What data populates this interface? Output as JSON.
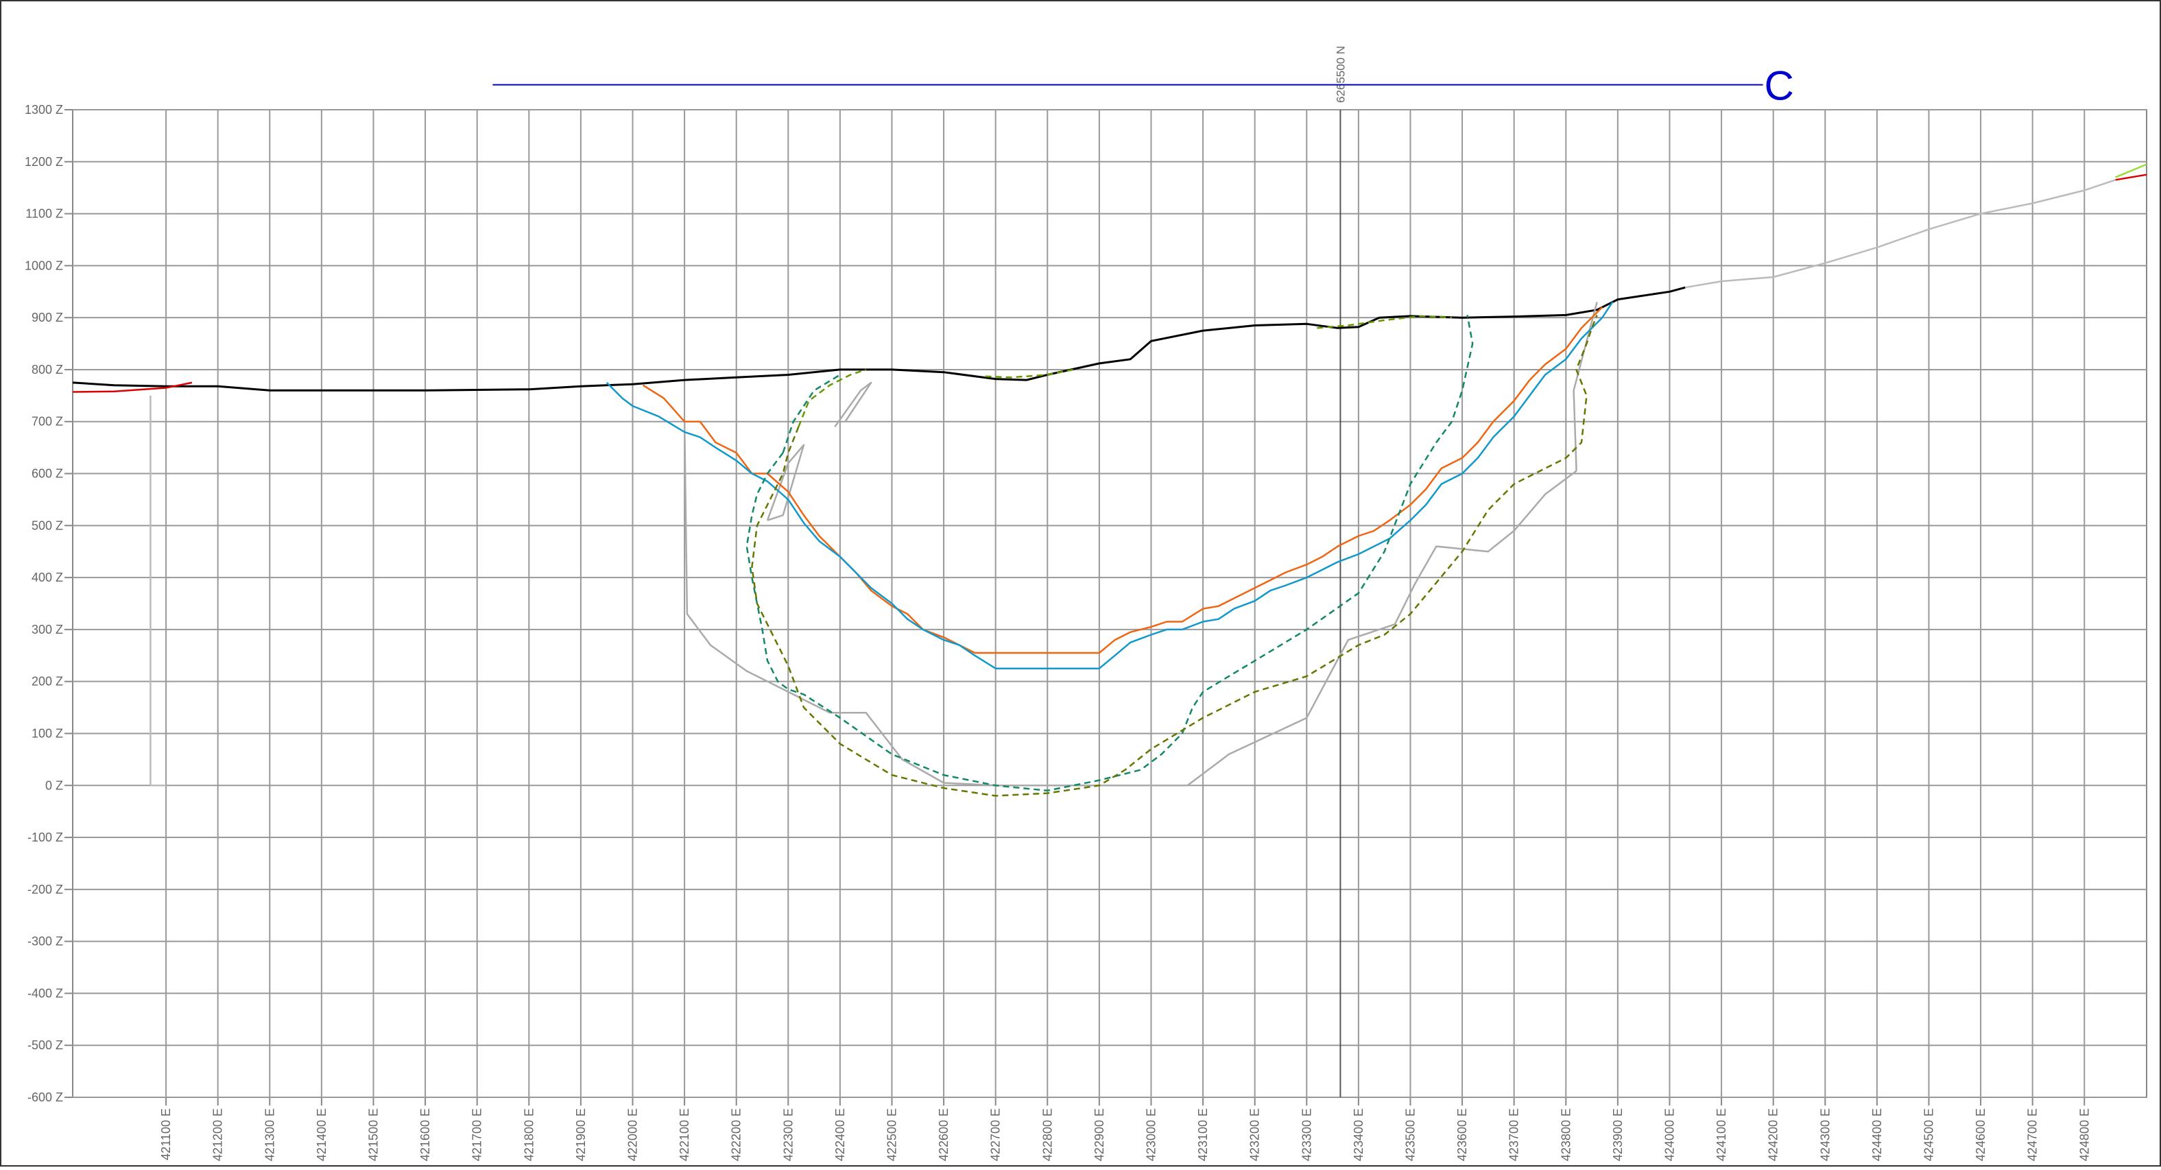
{
  "chart_data": {
    "type": "line",
    "title": "",
    "xlabel": "",
    "ylabel": "",
    "xlim": [
      420920,
      424920
    ],
    "ylim": [
      -600,
      1300
    ],
    "x_ticks": [
      421100,
      421200,
      421300,
      421400,
      421500,
      421600,
      421700,
      421800,
      421900,
      422000,
      422100,
      422200,
      422300,
      422400,
      422500,
      422600,
      422700,
      422800,
      422900,
      423000,
      423100,
      423200,
      423300,
      423400,
      423500,
      423600,
      423700,
      423800,
      423900,
      424000,
      424100,
      424200,
      424300,
      424400,
      424500,
      424600,
      424700,
      424800
    ],
    "x_tick_labels": [
      "421100 E",
      "421200 E",
      "421300 E",
      "421400 E",
      "421500 E",
      "421600 E",
      "421700 E",
      "421800 E",
      "421900 E",
      "422000 E",
      "422100 E",
      "422200 E",
      "422300 E",
      "422400 E",
      "422500 E",
      "422600 E",
      "422700 E",
      "422800 E",
      "422900 E",
      "423000 E",
      "423100 E",
      "423200 E",
      "423300 E",
      "423400 E",
      "423500 E",
      "423600 E",
      "423700 E",
      "423800 E",
      "423900 E",
      "424000 E",
      "424100 E",
      "424200 E",
      "424300 E",
      "424400 E",
      "424500 E",
      "424600 E",
      "424700 E",
      "424800 E"
    ],
    "y_ticks": [
      1300,
      1200,
      1100,
      1000,
      900,
      800,
      700,
      600,
      500,
      400,
      300,
      200,
      100,
      0,
      -100,
      -200,
      -300,
      -400,
      -500,
      -600
    ],
    "y_tick_labels": [
      "1300 Z",
      "1200 Z",
      "1100 Z",
      "1000 Z",
      "900 Z",
      "800 Z",
      "700 Z",
      "600 Z",
      "500 Z",
      "400 Z",
      "300 Z",
      "200 Z",
      "100 Z",
      "0 Z",
      "-100 Z",
      "-200 Z",
      "-300 Z",
      "-400 Z",
      "-500 Z",
      "-600 Z"
    ],
    "grid": true,
    "northing_line": {
      "x": 423365,
      "label": "6265500 N"
    },
    "section": {
      "label": "C",
      "x_start": 421730,
      "x_end": 424180,
      "y": 1348,
      "color": "#0000cc"
    },
    "series": [
      {
        "color": "#000000",
        "style": "solid",
        "x": [
          420920,
          421000,
          421100,
          421200,
          421300,
          421400,
          421600,
          421800,
          421900,
          422000,
          422100,
          422200,
          422300,
          422400,
          422500,
          422600,
          422700,
          422760,
          422800,
          422900,
          422960,
          423000,
          423100,
          423200,
          423300,
          423360,
          423400,
          423440,
          423500,
          423600,
          423700,
          423800,
          423860,
          423900,
          424000,
          424030
        ],
        "y": [
          775,
          770,
          768,
          768,
          760,
          760,
          760,
          762,
          768,
          772,
          780,
          785,
          790,
          800,
          800,
          795,
          782,
          780,
          790,
          812,
          820,
          855,
          875,
          885,
          888,
          880,
          882,
          900,
          903,
          900,
          902,
          905,
          915,
          935,
          950,
          958
        ]
      },
      {
        "color": "#dd0000",
        "style": "solid",
        "x": [
          420920,
          421000,
          421100,
          421150
        ],
        "y": [
          757,
          758,
          765,
          775
        ]
      },
      {
        "color": "#dd0000",
        "style": "solid",
        "x": [
          424860,
          424920
        ],
        "y": [
          1165,
          1175
        ]
      },
      {
        "color": "#99dd33",
        "style": "solid",
        "x": [
          424860,
          424920
        ],
        "y": [
          1170,
          1195
        ]
      },
      {
        "color": "#bbbbbb",
        "style": "solid",
        "x": [
          424030,
          424100,
          424200,
          424300,
          424400,
          424500,
          424600,
          424700,
          424800,
          424860
        ],
        "y": [
          958,
          970,
          978,
          1005,
          1035,
          1070,
          1100,
          1120,
          1145,
          1165
        ]
      },
      {
        "color": "#bbbbbb",
        "style": "solid",
        "x": [
          421070,
          421070,
          421100
        ],
        "y": [
          750,
          0,
          0
        ]
      },
      {
        "color": "#aaaaaa",
        "style": "solid",
        "x": [
          422100,
          422105,
          422150,
          422220,
          422300,
          422380,
          422450,
          422520,
          422600,
          422700,
          422800,
          422900,
          423000,
          423070
        ],
        "y": [
          700,
          330,
          270,
          220,
          180,
          140,
          140,
          50,
          5,
          0,
          0,
          0,
          0,
          0
        ]
      },
      {
        "color": "#aaaaaa",
        "style": "solid",
        "x": [
          423070,
          423150,
          423300,
          423380,
          423470,
          423510,
          423550,
          423650,
          423700,
          423760,
          423820,
          423820,
          423815,
          423860
        ],
        "y": [
          0,
          60,
          130,
          280,
          310,
          390,
          460,
          450,
          490,
          560,
          605,
          615,
          760,
          930
        ]
      },
      {
        "color": "#aaaaaa",
        "style": "solid",
        "x": [
          422260,
          422300,
          422330,
          422290,
          422260
        ],
        "y": [
          510,
          620,
          655,
          520,
          510
        ]
      },
      {
        "color": "#aaaaaa",
        "style": "solid",
        "x": [
          422390,
          422440,
          422460,
          422410
        ],
        "y": [
          690,
          760,
          775,
          700
        ]
      },
      {
        "color": "#ee6611",
        "style": "solid",
        "x": [
          422020,
          422060,
          422100,
          422130,
          422160,
          422200,
          422230,
          422260,
          422300,
          422330,
          422360,
          422400,
          422430,
          422460,
          422500,
          422530,
          422560,
          422600,
          422630,
          422660,
          422700,
          422900,
          422930,
          422960,
          423000,
          423030,
          423060,
          423100,
          423130,
          423160,
          423200,
          423230,
          423260,
          423300,
          423330,
          423360,
          423400,
          423430,
          423460,
          423500,
          423530,
          423560,
          423600,
          423630,
          423660,
          423700,
          423730,
          423760,
          423800,
          423830,
          423870
        ],
        "y": [
          770,
          745,
          700,
          700,
          660,
          640,
          600,
          600,
          565,
          520,
          480,
          440,
          410,
          375,
          345,
          330,
          300,
          285,
          270,
          255,
          255,
          255,
          280,
          295,
          305,
          315,
          315,
          340,
          345,
          360,
          380,
          395,
          410,
          425,
          440,
          460,
          480,
          490,
          510,
          540,
          570,
          610,
          630,
          660,
          700,
          740,
          780,
          810,
          840,
          880,
          920
        ]
      },
      {
        "color": "#1199cc",
        "style": "solid",
        "x": [
          421950,
          421980,
          422000,
          422050,
          422100,
          422130,
          422160,
          422200,
          422230,
          422260,
          422300,
          422330,
          422360,
          422400,
          422430,
          422460,
          422500,
          422530,
          422560,
          422600,
          422630,
          422660,
          422700,
          422900,
          422930,
          422960,
          423000,
          423030,
          423060,
          423100,
          423130,
          423160,
          423200,
          423230,
          423260,
          423300,
          423330,
          423360,
          423400,
          423430,
          423460,
          423500,
          423530,
          423560,
          423600,
          423630,
          423660,
          423700,
          423730,
          423760,
          423800,
          423830,
          423870,
          423890
        ],
        "y": [
          775,
          745,
          730,
          710,
          680,
          670,
          650,
          625,
          600,
          585,
          550,
          505,
          470,
          440,
          410,
          380,
          350,
          320,
          300,
          280,
          270,
          250,
          225,
          225,
          250,
          275,
          290,
          300,
          300,
          315,
          320,
          340,
          355,
          375,
          385,
          400,
          415,
          430,
          445,
          460,
          475,
          510,
          540,
          580,
          600,
          630,
          670,
          710,
          750,
          790,
          820,
          860,
          900,
          930
        ]
      },
      {
        "color": "#118866",
        "style": "dashed",
        "x": [
          422290,
          422260,
          422240,
          422230,
          422220,
          422230,
          422250,
          422260,
          422280,
          422300,
          422330,
          422400,
          422500,
          422600,
          422700,
          422800,
          422900,
          422980,
          423020,
          423060,
          423080,
          423100,
          423200,
          423300,
          423400,
          423450,
          423500,
          423550,
          423580,
          423600,
          423620,
          423610
        ],
        "y": [
          640,
          600,
          560,
          520,
          460,
          400,
          300,
          240,
          200,
          185,
          175,
          130,
          60,
          20,
          0,
          -10,
          10,
          30,
          60,
          100,
          150,
          180,
          240,
          300,
          370,
          450,
          580,
          660,
          700,
          760,
          850,
          905
        ]
      },
      {
        "color": "#667700",
        "style": "dashed",
        "x": [
          422320,
          422300,
          422290,
          422280,
          422240,
          422230,
          422240,
          422260,
          422280,
          422300,
          422330,
          422400,
          422500,
          422600,
          422700,
          422800,
          422900,
          422950,
          423000,
          423100,
          423200,
          423300,
          423400,
          423450,
          423500,
          423550,
          423600,
          423650,
          423700,
          423750,
          423800,
          423830,
          423840,
          423820,
          423840,
          423850,
          423860
        ],
        "y": [
          690,
          640,
          600,
          580,
          500,
          420,
          350,
          310,
          270,
          230,
          150,
          80,
          20,
          -5,
          -20,
          -15,
          0,
          30,
          70,
          130,
          180,
          210,
          270,
          290,
          330,
          390,
          450,
          530,
          580,
          605,
          630,
          660,
          750,
          800,
          850,
          880,
          905
        ]
      },
      {
        "color": "#669900",
        "style": "dashed",
        "x": [
          422320,
          422340,
          422380,
          422420,
          422450
        ],
        "y": [
          690,
          740,
          770,
          790,
          800
        ]
      },
      {
        "color": "#118866",
        "style": "dashed",
        "x": [
          422290,
          422310,
          422350,
          422400
        ],
        "y": [
          640,
          700,
          760,
          790
        ]
      },
      {
        "color": "#669900",
        "style": "dashed",
        "x": [
          422680,
          422730,
          422800,
          422850
        ],
        "y": [
          787,
          785,
          790,
          800
        ]
      },
      {
        "color": "#669900",
        "style": "dashed",
        "x": [
          423320,
          423380,
          423450,
          423520,
          423580
        ],
        "y": [
          880,
          885,
          895,
          903,
          900
        ]
      }
    ]
  }
}
